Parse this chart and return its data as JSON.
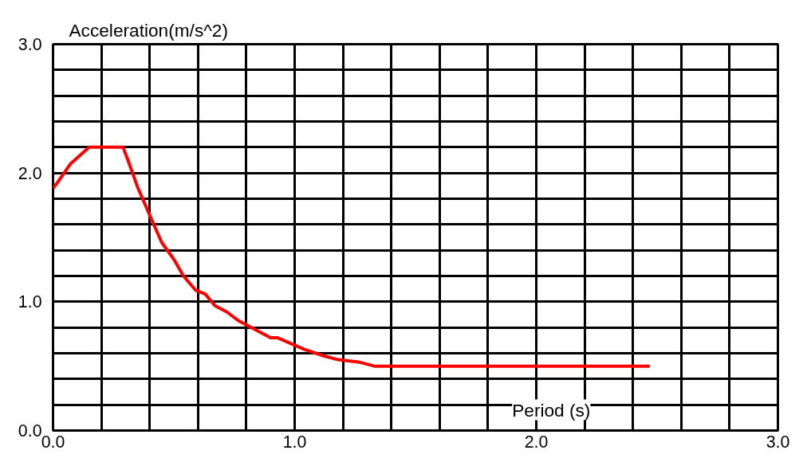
{
  "chart_data": {
    "type": "line",
    "xlabel": "Period (s)",
    "ylabel": "Acceleration(m/s^2)",
    "x": [
      0,
      0.02,
      0.046,
      0.072,
      0.15,
      0.29,
      0.31,
      0.35,
      0.41,
      0.45,
      0.5,
      0.54,
      0.59,
      0.63,
      0.67,
      0.72,
      0.77,
      0.9,
      0.93,
      1.04,
      1.12,
      1.18,
      1.27,
      1.33,
      2.47
    ],
    "series": [
      {
        "color": "#ff0000",
        "values": [
          1.88,
          1.93,
          2.0,
          2.07,
          2.2,
          2.2,
          2.1,
          1.89,
          1.63,
          1.46,
          1.33,
          1.2,
          1.09,
          1.06,
          0.97,
          0.92,
          0.85,
          0.72,
          0.72,
          0.63,
          0.58,
          0.55,
          0.53,
          0.5,
          0.5
        ]
      }
    ],
    "xlim": [
      0,
      3
    ],
    "ylim": [
      0,
      3
    ],
    "xticks": [
      {
        "value": 0,
        "label": "0.0"
      },
      {
        "value": 0.2,
        "label": null
      },
      {
        "value": 0.4,
        "label": null
      },
      {
        "value": 0.6,
        "label": null
      },
      {
        "value": 0.8,
        "label": null
      },
      {
        "value": 1,
        "label": "1.0"
      },
      {
        "value": 1.2,
        "label": null
      },
      {
        "value": 1.4,
        "label": null
      },
      {
        "value": 1.6,
        "label": null
      },
      {
        "value": 1.8,
        "label": null
      },
      {
        "value": 2,
        "label": "2.0"
      },
      {
        "value": 2.2,
        "label": null
      },
      {
        "value": 2.4,
        "label": null
      },
      {
        "value": 2.6,
        "label": null
      },
      {
        "value": 2.8,
        "label": null
      },
      {
        "value": 3,
        "label": "3.0"
      }
    ],
    "yticks": [
      {
        "value": 0,
        "label": "0.0"
      },
      {
        "value": 0.2,
        "label": null
      },
      {
        "value": 0.4,
        "label": null
      },
      {
        "value": 0.6,
        "label": null
      },
      {
        "value": 0.8,
        "label": null
      },
      {
        "value": 1,
        "label": "1.0"
      },
      {
        "value": 1.2,
        "label": null
      },
      {
        "value": 1.4,
        "label": null
      },
      {
        "value": 1.6,
        "label": null
      },
      {
        "value": 1.8,
        "label": null
      },
      {
        "value": 2,
        "label": "2.0"
      },
      {
        "value": 2.2,
        "label": null
      },
      {
        "value": 2.4,
        "label": null
      },
      {
        "value": 2.6,
        "label": null
      },
      {
        "value": 2.8,
        "label": null
      },
      {
        "value": 3,
        "label": "3.0"
      }
    ],
    "grid": true,
    "marker": "none",
    "line_style": "solid"
  }
}
